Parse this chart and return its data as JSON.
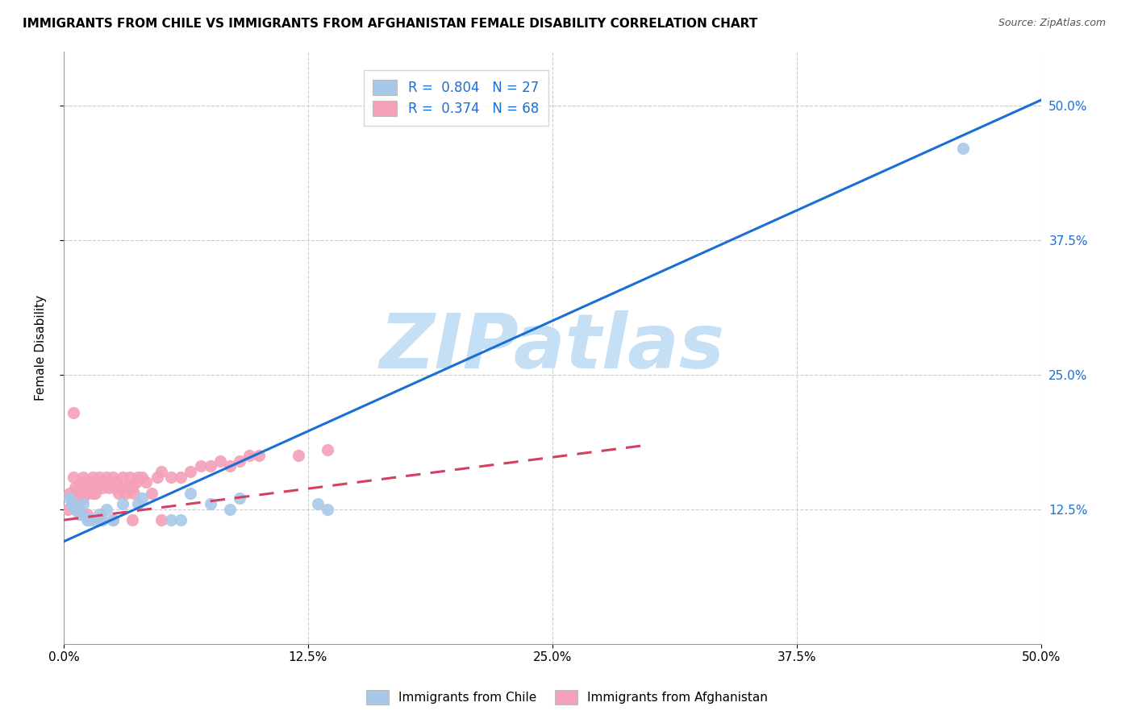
{
  "title": "IMMIGRANTS FROM CHILE VS IMMIGRANTS FROM AFGHANISTAN FEMALE DISABILITY CORRELATION CHART",
  "source": "Source: ZipAtlas.com",
  "ylabel": "Female Disability",
  "xlim": [
    0.0,
    0.5
  ],
  "ylim": [
    0.0,
    0.55
  ],
  "xtick_vals": [
    0.0,
    0.125,
    0.25,
    0.375,
    0.5
  ],
  "ytick_vals": [
    0.125,
    0.25,
    0.375,
    0.5
  ],
  "chile_color": "#a8c8e8",
  "afghanistan_color": "#f4a0b8",
  "chile_line_color": "#1a6fd4",
  "afghanistan_line_color": "#d44060",
  "watermark": "ZIPatlas",
  "watermark_color": "#c5dff5",
  "bottom_legend_chile": "Immigrants from Chile",
  "bottom_legend_afg": "Immigrants from Afghanistan",
  "legend_chile_label": "R =  0.804   N = 27",
  "legend_afg_label": "R =  0.374   N = 68",
  "chile_line_x0": 0.0,
  "chile_line_y0": 0.095,
  "chile_line_x1": 0.5,
  "chile_line_y1": 0.505,
  "afg_line_x0": 0.0,
  "afg_line_y0": 0.115,
  "afg_line_x1": 0.3,
  "afg_line_y1": 0.185,
  "chile_scatter_x": [
    0.003,
    0.004,
    0.005,
    0.006,
    0.007,
    0.008,
    0.009,
    0.01,
    0.012,
    0.013,
    0.015,
    0.018,
    0.02,
    0.022,
    0.025,
    0.03,
    0.038,
    0.04,
    0.055,
    0.06,
    0.065,
    0.075,
    0.085,
    0.09,
    0.13,
    0.135,
    0.46
  ],
  "chile_scatter_y": [
    0.135,
    0.13,
    0.13,
    0.125,
    0.125,
    0.12,
    0.12,
    0.13,
    0.115,
    0.115,
    0.115,
    0.12,
    0.115,
    0.125,
    0.115,
    0.13,
    0.13,
    0.135,
    0.115,
    0.115,
    0.14,
    0.13,
    0.125,
    0.135,
    0.13,
    0.125,
    0.46
  ],
  "afg_scatter_x": [
    0.002,
    0.003,
    0.004,
    0.005,
    0.005,
    0.006,
    0.006,
    0.007,
    0.007,
    0.008,
    0.008,
    0.009,
    0.009,
    0.01,
    0.01,
    0.011,
    0.012,
    0.013,
    0.014,
    0.015,
    0.015,
    0.016,
    0.017,
    0.018,
    0.019,
    0.02,
    0.021,
    0.022,
    0.023,
    0.024,
    0.025,
    0.026,
    0.027,
    0.028,
    0.029,
    0.03,
    0.031,
    0.032,
    0.033,
    0.034,
    0.035,
    0.036,
    0.037,
    0.038,
    0.04,
    0.042,
    0.045,
    0.048,
    0.05,
    0.055,
    0.06,
    0.065,
    0.07,
    0.075,
    0.08,
    0.085,
    0.09,
    0.095,
    0.1,
    0.12,
    0.135,
    0.005,
    0.008,
    0.012,
    0.018,
    0.025,
    0.035,
    0.05
  ],
  "afg_scatter_y": [
    0.125,
    0.14,
    0.135,
    0.13,
    0.155,
    0.135,
    0.145,
    0.13,
    0.14,
    0.135,
    0.145,
    0.14,
    0.15,
    0.135,
    0.155,
    0.145,
    0.14,
    0.145,
    0.15,
    0.14,
    0.155,
    0.14,
    0.145,
    0.155,
    0.15,
    0.145,
    0.15,
    0.155,
    0.145,
    0.15,
    0.155,
    0.145,
    0.15,
    0.14,
    0.145,
    0.155,
    0.145,
    0.14,
    0.145,
    0.155,
    0.145,
    0.14,
    0.15,
    0.155,
    0.155,
    0.15,
    0.14,
    0.155,
    0.16,
    0.155,
    0.155,
    0.16,
    0.165,
    0.165,
    0.17,
    0.165,
    0.17,
    0.175,
    0.175,
    0.175,
    0.18,
    0.215,
    0.125,
    0.12,
    0.115,
    0.115,
    0.115,
    0.115
  ]
}
